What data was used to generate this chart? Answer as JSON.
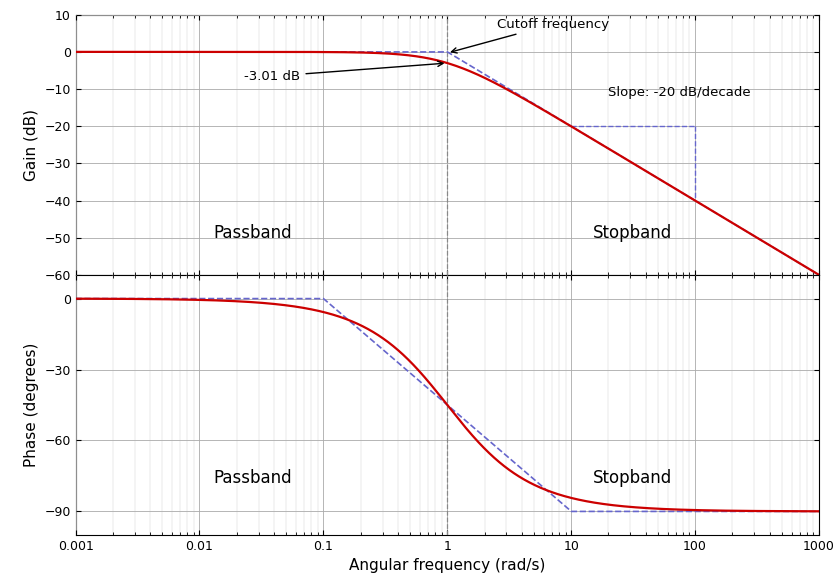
{
  "xlabel": "Angular frequency (rad/s)",
  "ylabel_mag": "Gain (dB)",
  "ylabel_phase": "Phase (degrees)",
  "omega_c": 1.0,
  "freq_min": 0.001,
  "freq_max": 1000,
  "mag_ylim": [
    -60,
    10
  ],
  "mag_yticks": [
    10,
    0,
    -10,
    -20,
    -30,
    -40,
    -50,
    -60
  ],
  "phase_ylim": [
    -100,
    10
  ],
  "phase_yticks": [
    0,
    -30,
    -60,
    -90
  ],
  "line_color": "#cc0000",
  "asymptote_color": "#6666cc",
  "grid_major_color": "#aaaaaa",
  "grid_minor_color": "#cccccc",
  "plot_bg": "#f0f0f0",
  "text_passband_mag": "Passband",
  "text_stopband_mag": "Stopband",
  "text_passband_phase": "Passband",
  "text_stopband_phase": "Stopband",
  "annotation_cutoff": "Cutoff frequency",
  "annotation_db": "-3.01 dB",
  "annotation_slope": "Slope: -20 dB/decade",
  "cutoff_vline_color": "#888888",
  "tick_font_size": 9,
  "label_font_size": 11,
  "annot_font_size": 9.5,
  "text_font_size": 12
}
